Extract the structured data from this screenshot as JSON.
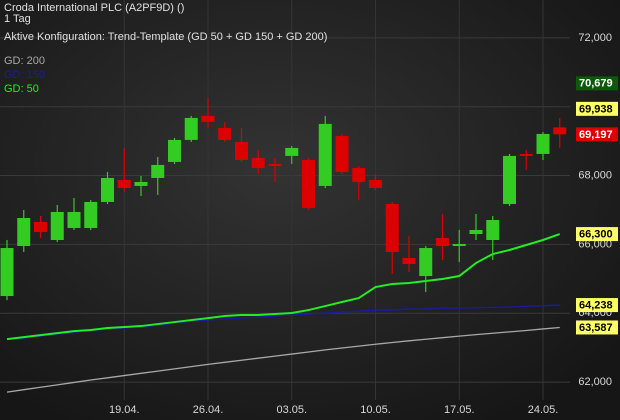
{
  "chart_data": {
    "type": "candlestick",
    "title": "Croda International PLC (A2PF9D) ()",
    "subtitle": "1 Tag",
    "config": "Aktive Konfiguration: Trend-Template (GD 50 + GD 150 + GD 200)",
    "categories": [
      null,
      null,
      null,
      null,
      null,
      null,
      null,
      "19.04.",
      null,
      null,
      null,
      null,
      "26.04.",
      null,
      null,
      null,
      null,
      "03.05.",
      null,
      null,
      null,
      null,
      "10.05.",
      null,
      null,
      null,
      null,
      "17.05.",
      null,
      null,
      null,
      null,
      "24.05.",
      null
    ],
    "open": [
      64500,
      65953,
      66651,
      66128,
      66477,
      66477,
      67233,
      67872,
      67698,
      67930,
      68395,
      69035,
      69733,
      69384,
      68977,
      68512,
      68337,
      68570,
      68453,
      67698,
      69151,
      68221,
      67872,
      67174,
      65605,
      65081,
      66186,
      65953,
      66302,
      66128,
      67174,
      68628,
      68628,
      69400
    ],
    "high": [
      66130,
      67000,
      66826,
      67145,
      67349,
      67291,
      68105,
      68802,
      67988,
      68541,
      69093,
      69733,
      70256,
      69558,
      69384,
      68744,
      68512,
      68860,
      68512,
      69733,
      69209,
      68279,
      68047,
      67233,
      66244,
      65953,
      66884,
      66419,
      66884,
      66826,
      68628,
      68744,
      69267,
      69674
    ],
    "low": [
      64380,
      65779,
      66186,
      66070,
      66419,
      66419,
      67174,
      67523,
      67407,
      67436,
      68337,
      68977,
      69384,
      68977,
      68395,
      68047,
      67814,
      68337,
      67000,
      67640,
      68047,
      67291,
      67581,
      65140,
      65198,
      64616,
      65547,
      65488,
      66128,
      65547,
      67116,
      68163,
      68453,
      68802
    ],
    "close": [
      65895,
      66767,
      66360,
      66942,
      66942,
      67233,
      67930,
      67640,
      67814,
      68308,
      69035,
      69674,
      69558,
      69035,
      68453,
      68221,
      68279,
      68802,
      67058,
      69500,
      68105,
      67814,
      67640,
      65779,
      65430,
      65895,
      65953,
      66012,
      66419,
      66709,
      68570,
      68570,
      69209,
      69197
    ],
    "up_color": "#33cc22",
    "down_color": "#dd0000",
    "series": [
      {
        "name": "GD: 200",
        "color": "#a8a8a8",
        "values": [
          61709,
          61780,
          61850,
          61920,
          61990,
          62060,
          62125,
          62190,
          62255,
          62320,
          62385,
          62450,
          62515,
          62575,
          62635,
          62695,
          62755,
          62815,
          62875,
          62935,
          62990,
          63045,
          63100,
          63150,
          63200,
          63245,
          63290,
          63335,
          63380,
          63420,
          63460,
          63500,
          63545,
          63587
        ]
      },
      {
        "name": "GD: 150",
        "color": "#1a1aa8",
        "values": [
          63250,
          63279,
          63337,
          63395,
          63453,
          63512,
          63541,
          63570,
          63599,
          63657,
          63715,
          63773,
          63802,
          63831,
          63860,
          63890,
          63919,
          63948,
          63977,
          64006,
          64035,
          64064,
          64093,
          64093,
          64122,
          64122,
          64151,
          64151,
          64160,
          64170,
          64180,
          64200,
          64220,
          64238
        ]
      },
      {
        "name": "GD: 50",
        "color": "#22ee22",
        "values": [
          63250,
          63308,
          63366,
          63424,
          63482,
          63512,
          63570,
          63599,
          63628,
          63686,
          63744,
          63802,
          63860,
          63919,
          63948,
          63948,
          63977,
          64006,
          64093,
          64209,
          64326,
          64442,
          64762,
          64849,
          64878,
          64936,
          64994,
          65081,
          65459,
          65721,
          65837,
          65983,
          66128,
          66300
        ]
      }
    ],
    "ylim": [
      61480,
      73100
    ],
    "yticks": [
      {
        "value": 62000,
        "label": "62,000"
      },
      {
        "value": 64000,
        "label": "64,000"
      },
      {
        "value": 66000,
        "label": "66,000"
      },
      {
        "value": 68000,
        "label": "68,000"
      },
      {
        "value": 70000,
        "label": "70,000"
      },
      {
        "value": 72000,
        "label": "72,000"
      }
    ],
    "grid": true,
    "price_tags": [
      {
        "value": 70679,
        "label": "70,679",
        "color": "#0b5a0b",
        "text_color": "#ffffff"
      },
      {
        "value": 69938,
        "label": "69,938",
        "color": "#ffff66",
        "text_color": "#000000"
      },
      {
        "value": 69197,
        "label": "69,197",
        "color": "#dd0000",
        "text_color": "#ffffff"
      },
      {
        "value": 66300,
        "label": "66,300",
        "color": "#ffff66",
        "text_color": "#000000"
      },
      {
        "value": 64238,
        "label": "64,238",
        "color": "#ffff66",
        "text_color": "#000000"
      },
      {
        "value": 63587,
        "label": "63,587",
        "color": "#ffff66",
        "text_color": "#000000"
      }
    ]
  }
}
